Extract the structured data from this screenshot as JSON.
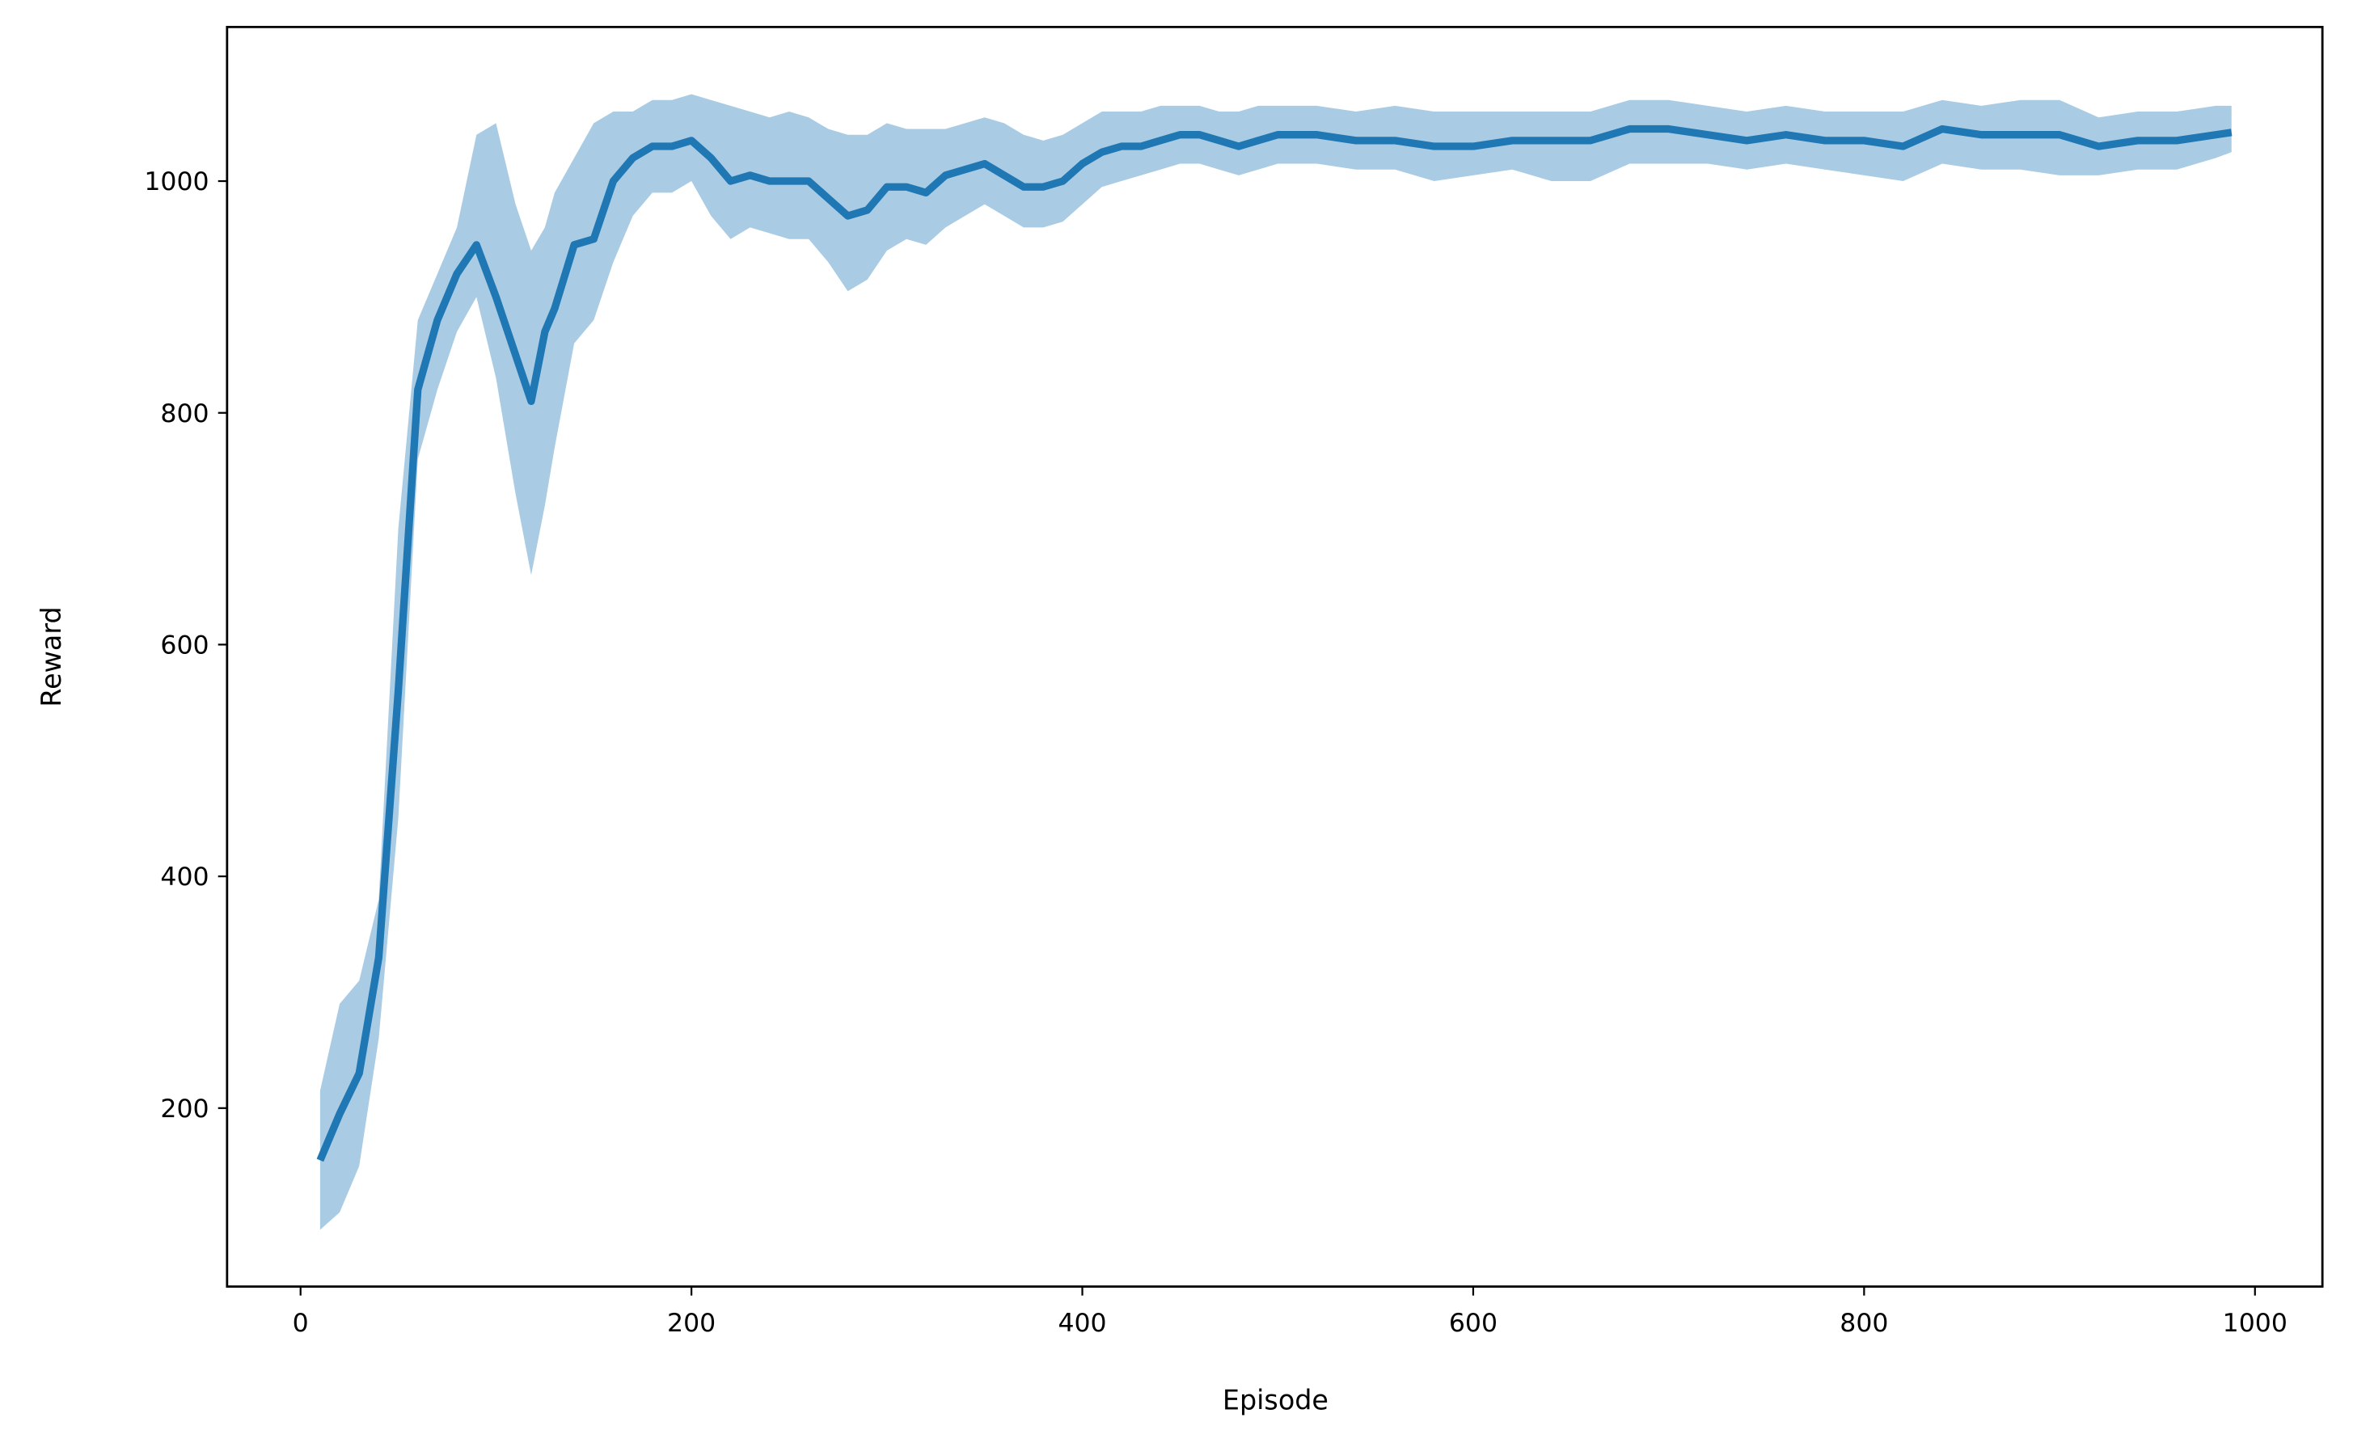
{
  "chart_data": {
    "type": "line",
    "x_label": "Episode",
    "y_label": "Reward",
    "color": "#1f77b4",
    "band_color": "#a9cce4",
    "xlim": [
      -37.6,
      1034.5
    ],
    "ylim": [
      46,
      1133
    ],
    "xticks": [
      0,
      200,
      400,
      600,
      800,
      1000
    ],
    "yticks": [
      200,
      400,
      600,
      800,
      1000
    ],
    "x": [
      10,
      20,
      30,
      40,
      50,
      60,
      70,
      80,
      90,
      100,
      110,
      118,
      125,
      130,
      140,
      150,
      160,
      170,
      180,
      190,
      200,
      210,
      220,
      230,
      240,
      250,
      260,
      270,
      280,
      290,
      300,
      310,
      320,
      330,
      340,
      350,
      360,
      370,
      380,
      390,
      400,
      410,
      420,
      430,
      440,
      450,
      460,
      470,
      480,
      490,
      500,
      520,
      540,
      560,
      580,
      600,
      620,
      640,
      660,
      680,
      700,
      720,
      740,
      760,
      780,
      800,
      820,
      840,
      860,
      880,
      900,
      920,
      940,
      960,
      980,
      988
    ],
    "values": [
      155,
      195,
      230,
      330,
      560,
      820,
      880,
      920,
      945,
      900,
      850,
      810,
      870,
      890,
      945,
      950,
      1000,
      1020,
      1030,
      1030,
      1035,
      1020,
      1000,
      1005,
      1000,
      1000,
      1000,
      985,
      970,
      975,
      995,
      995,
      990,
      1005,
      1010,
      1015,
      1005,
      995,
      995,
      1000,
      1015,
      1025,
      1030,
      1030,
      1035,
      1040,
      1040,
      1035,
      1030,
      1035,
      1040,
      1040,
      1035,
      1035,
      1030,
      1030,
      1035,
      1035,
      1035,
      1045,
      1045,
      1040,
      1035,
      1040,
      1035,
      1035,
      1030,
      1045,
      1040,
      1040,
      1040,
      1030,
      1035,
      1035,
      1040,
      1042
    ],
    "lower": [
      95,
      110,
      150,
      260,
      450,
      760,
      820,
      870,
      900,
      830,
      730,
      660,
      720,
      770,
      860,
      880,
      930,
      970,
      990,
      990,
      1000,
      970,
      950,
      960,
      955,
      950,
      950,
      930,
      905,
      915,
      940,
      950,
      945,
      960,
      970,
      980,
      970,
      960,
      960,
      965,
      980,
      995,
      1000,
      1005,
      1010,
      1015,
      1015,
      1010,
      1005,
      1010,
      1015,
      1015,
      1010,
      1010,
      1000,
      1005,
      1010,
      1000,
      1000,
      1015,
      1015,
      1015,
      1010,
      1015,
      1010,
      1005,
      1000,
      1015,
      1010,
      1010,
      1005,
      1005,
      1010,
      1010,
      1020,
      1025
    ],
    "upper": [
      215,
      290,
      310,
      380,
      700,
      880,
      920,
      960,
      1040,
      1050,
      980,
      940,
      960,
      990,
      1020,
      1050,
      1060,
      1060,
      1070,
      1070,
      1075,
      1070,
      1065,
      1060,
      1055,
      1060,
      1055,
      1045,
      1040,
      1040,
      1050,
      1045,
      1045,
      1045,
      1050,
      1055,
      1050,
      1040,
      1035,
      1040,
      1050,
      1060,
      1060,
      1060,
      1065,
      1065,
      1065,
      1060,
      1060,
      1065,
      1065,
      1065,
      1060,
      1065,
      1060,
      1060,
      1060,
      1060,
      1060,
      1070,
      1070,
      1065,
      1060,
      1065,
      1060,
      1060,
      1060,
      1070,
      1065,
      1070,
      1070,
      1055,
      1060,
      1060,
      1065,
      1065
    ]
  }
}
